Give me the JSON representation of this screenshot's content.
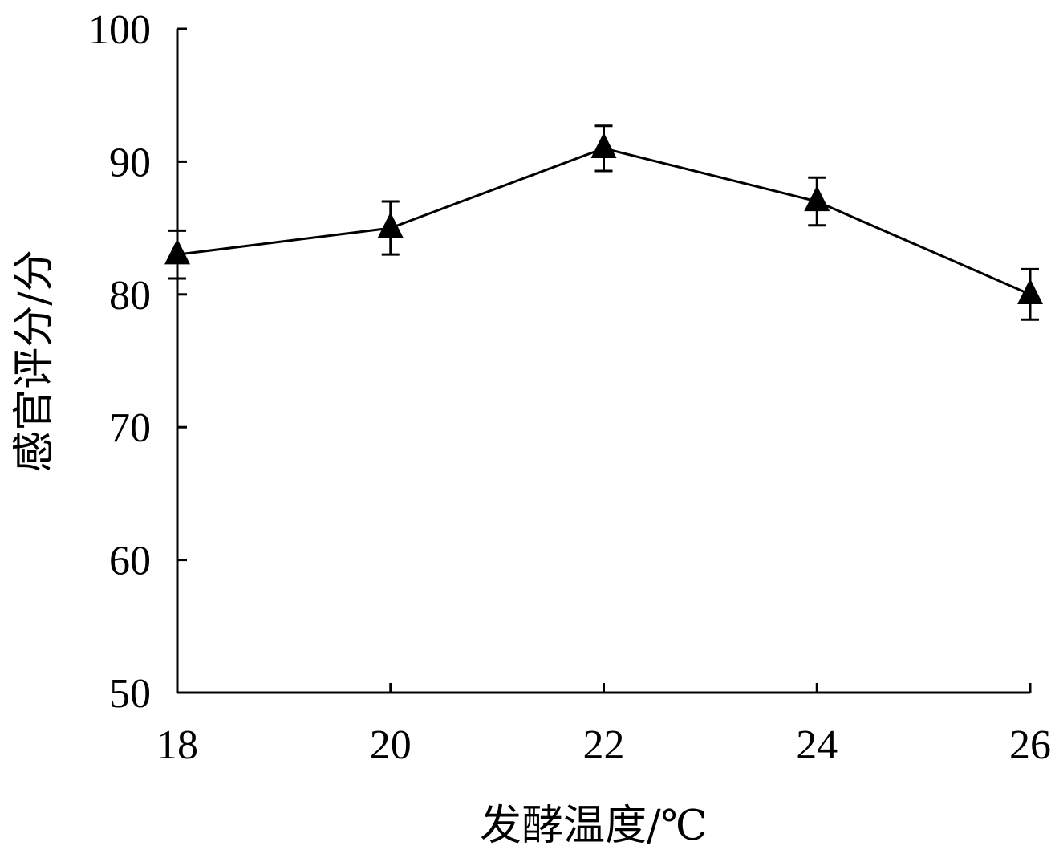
{
  "chart_data": {
    "type": "line",
    "xlabel": "发酵温度/℃",
    "ylabel": "感官评分/分",
    "x": [
      18,
      20,
      22,
      24,
      26
    ],
    "xticks": [
      "18",
      "20",
      "22",
      "24",
      "26"
    ],
    "xlim": [
      18,
      26
    ],
    "yticks": [
      "50",
      "60",
      "70",
      "80",
      "90",
      "100"
    ],
    "ylim": [
      50,
      100
    ],
    "series": [
      {
        "values": [
          83,
          85,
          91,
          87,
          80
        ],
        "error": [
          1.8,
          2.0,
          1.7,
          1.8,
          1.9
        ],
        "marker": "triangle",
        "color": "#000000"
      }
    ],
    "grid": false,
    "legend": "none"
  }
}
